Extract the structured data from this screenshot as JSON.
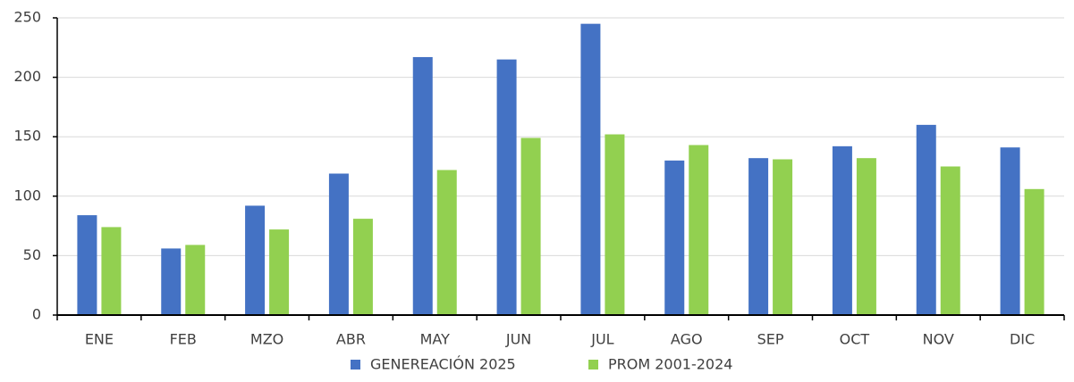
{
  "chart_data": {
    "type": "bar",
    "categories": [
      "ENE",
      "FEB",
      "MZO",
      "ABR",
      "MAY",
      "JUN",
      "JUL",
      "AGO",
      "SEP",
      "OCT",
      "NOV",
      "DIC"
    ],
    "series": [
      {
        "name": "GENEREACIÓN 2025",
        "color": "#4472c4",
        "values": [
          84,
          56,
          92,
          119,
          217,
          215,
          245,
          130,
          132,
          142,
          160,
          141
        ]
      },
      {
        "name": "PROM 2001-2024",
        "color": "#92d050",
        "values": [
          74,
          59,
          72,
          81,
          122,
          149,
          152,
          143,
          131,
          132,
          125,
          106
        ]
      }
    ],
    "ylim": [
      0,
      250
    ],
    "yticks": [
      0,
      50,
      100,
      150,
      200,
      250
    ],
    "grid": true,
    "legend": "bottom"
  }
}
